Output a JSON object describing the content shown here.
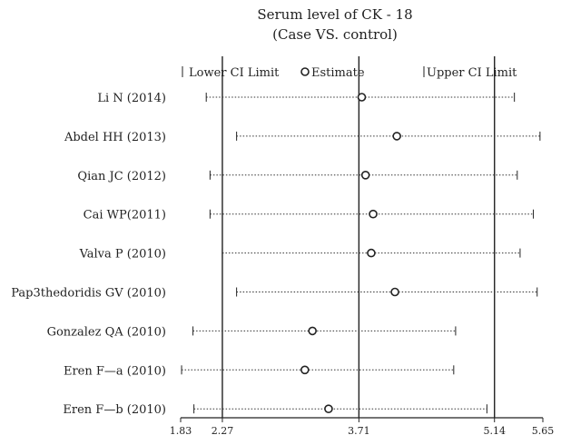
{
  "chart_data": {
    "type": "forest",
    "title": "Serum level of CK - 18",
    "subtitle": "(Case VS. control)",
    "legend": {
      "lower": "Lower CI Limit",
      "estimate": "Estimate",
      "upper": "Upper CI Limit",
      "placement": "top"
    },
    "xlim": [
      1.83,
      5.65
    ],
    "xticks": [
      1.83,
      2.27,
      3.71,
      5.14,
      5.65
    ],
    "xtick_labels": [
      "1.83",
      "2.27",
      "3.71",
      "5.14",
      "5.65"
    ],
    "reference_lines": [
      2.27,
      3.71,
      5.14
    ],
    "studies": [
      {
        "label": "Li N (2014)",
        "lower": 2.1,
        "estimate": 3.74,
        "upper": 5.35
      },
      {
        "label": "Abdel HH (2013)",
        "lower": 2.42,
        "estimate": 4.11,
        "upper": 5.62
      },
      {
        "label": "Qian JC (2012)",
        "lower": 2.14,
        "estimate": 3.78,
        "upper": 5.38
      },
      {
        "label": "Cai WP(2011)",
        "lower": 2.14,
        "estimate": 3.86,
        "upper": 5.55
      },
      {
        "label": "Valva P (2010)",
        "lower": 2.27,
        "estimate": 3.84,
        "upper": 5.41
      },
      {
        "label": "Pap3thedoridis GV (2010)",
        "lower": 2.42,
        "estimate": 4.09,
        "upper": 5.59
      },
      {
        "label": "Gonzalez QA (2010)",
        "lower": 1.96,
        "estimate": 3.22,
        "upper": 4.73
      },
      {
        "label": "Eren F—a (2010)",
        "lower": 1.84,
        "estimate": 3.14,
        "upper": 4.71
      },
      {
        "label": "Eren F—b (2010)",
        "lower": 1.97,
        "estimate": 3.39,
        "upper": 5.06
      }
    ]
  }
}
